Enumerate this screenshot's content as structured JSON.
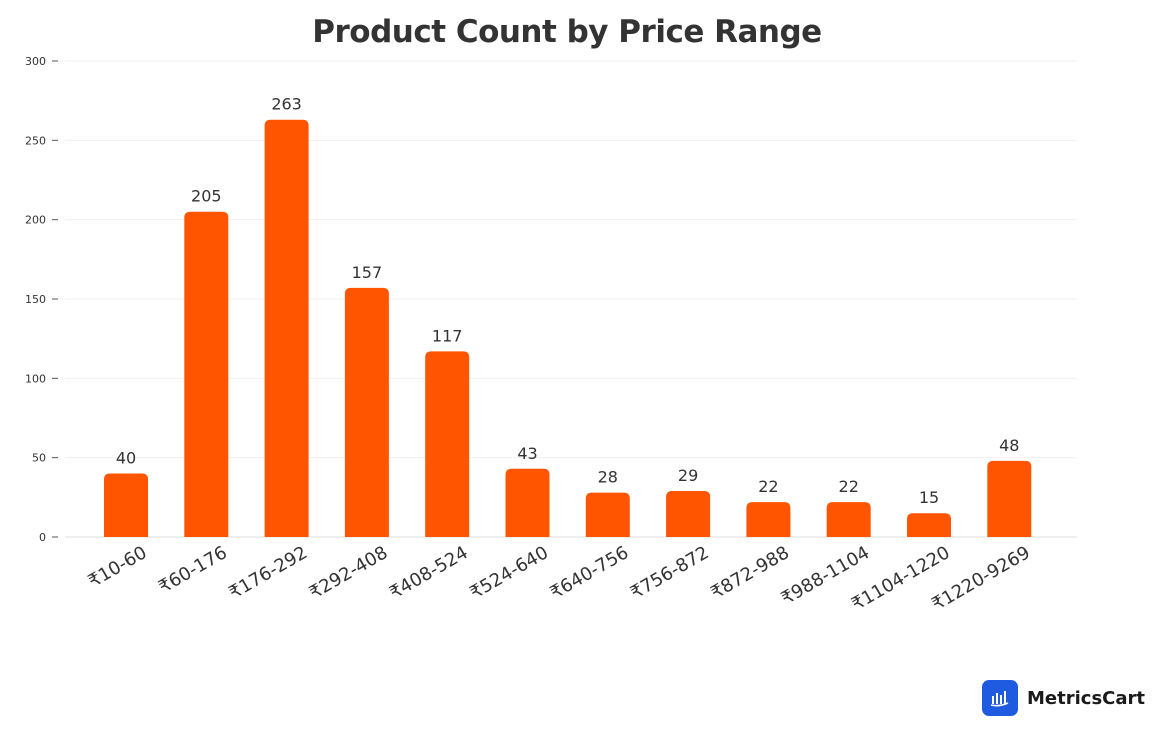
{
  "chart_data": {
    "type": "bar",
    "title": "Product Count by Price Range",
    "xlabel": "",
    "ylabel": "",
    "categories": [
      "₹10-60",
      "₹60-176",
      "₹176-292",
      "₹292-408",
      "₹408-524",
      "₹524-640",
      "₹640-756",
      "₹756-872",
      "₹872-988",
      "₹988-1104",
      "₹1104-1220",
      "₹1220-9269"
    ],
    "values": [
      40,
      205,
      263,
      157,
      117,
      43,
      28,
      29,
      22,
      22,
      15,
      48
    ],
    "ylim": [
      0,
      300
    ],
    "yticks": [
      0,
      50,
      100,
      150,
      200,
      250,
      300
    ],
    "grid": true,
    "bar_color": "#FF5500",
    "data_labels": true
  },
  "branding": {
    "name": "MetricsCart",
    "icon": "bar-chart-logo-icon",
    "color": "#1F5BE0"
  }
}
